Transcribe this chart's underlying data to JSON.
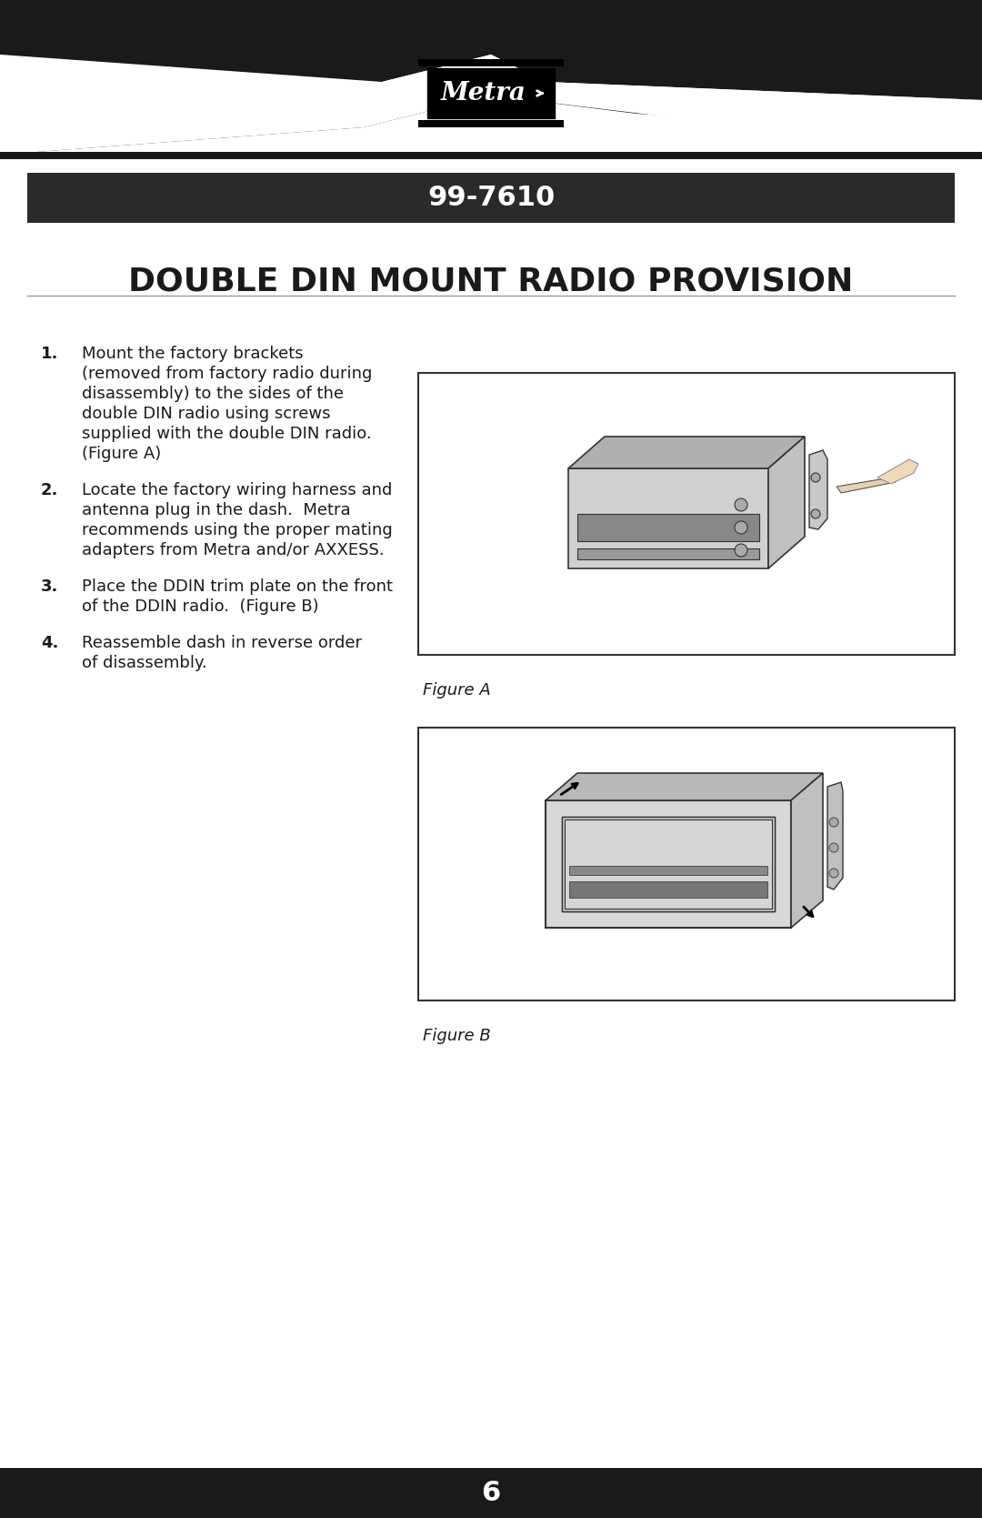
{
  "bg_color": "#ffffff",
  "header_bg": "#1a1a1a",
  "header_stripe_color": "#1a1a1a",
  "model_bar_bg": "#2a2a2a",
  "model_number": "99-7610",
  "title": "DOUBLE DIN MOUNT RADIO PROVISION",
  "footer_bg": "#1a1a1a",
  "footer_text": "6",
  "steps": [
    {
      "num": "1.",
      "text": "Mount the factory brackets\n(removed from factory radio during\ndisassembly) to the sides of the\ndouble DIN radio using screws\nsupplied with the double DIN radio.\n(Figure A)"
    },
    {
      "num": "2.",
      "text": "Locate the factory wiring harness and\nantenna plug in the dash.  Metra\nrecommends using the proper mating\nadapters from Metra and/or AXXESS."
    },
    {
      "num": "3.",
      "text": "Place the DDIN trim plate on the front\nof the DDIN radio.  (Figure B)"
    },
    {
      "num": "4.",
      "text": "Reassemble dash in reverse order\nof disassembly."
    }
  ],
  "figure_a_label": "Figure A",
  "figure_b_label": "Figure B",
  "text_color": "#1a1a1a",
  "white": "#ffffff"
}
